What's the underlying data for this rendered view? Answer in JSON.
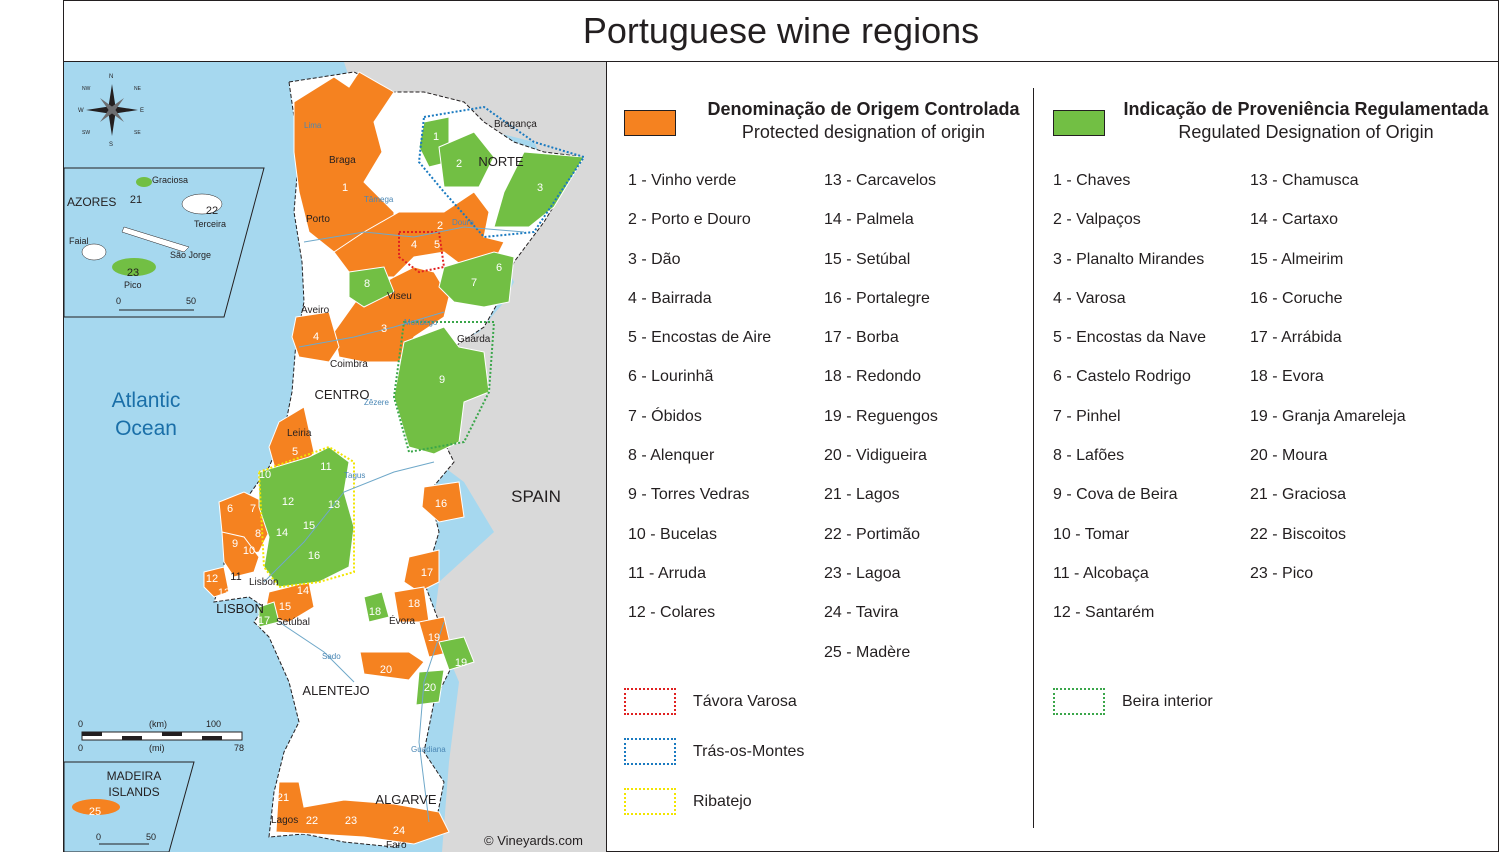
{
  "title": "Portuguese wine regions",
  "colors": {
    "doc": "#f58220",
    "ipr": "#72bf44",
    "sea": "#a6d8ef",
    "spain": "#d9d9d9",
    "tavora": "#e02020",
    "tras": "#1a7ac0",
    "ribatejo": "#f2e500",
    "beira": "#3aa64a"
  },
  "doc_legend": {
    "title": "Denominação de Origem Controlada",
    "subtitle": "Protected designation of origin",
    "items": [
      "1 - Vinho verde",
      "2 - Porto e Douro",
      "3 - Dão",
      "4 - Bairrada",
      "5 - Encostas de Aire",
      "6 - Lourinhã",
      "7 - Óbidos",
      "8 - Alenquer",
      "9 - Torres Vedras",
      "10 - Bucelas",
      "11 - Arruda",
      "12 - Colares",
      "13 - Carcavelos",
      "14 - Palmela",
      "15 - Setúbal",
      "16 - Portalegre",
      "17 - Borba",
      "18 - Redondo",
      "19 - Reguengos",
      "20 - Vidigueira",
      "21 - Lagos",
      "22 - Portimão",
      "23 - Lagoa",
      "24 - Tavira",
      "25 - Madère"
    ]
  },
  "ipr_legend": {
    "title": "Indicação de Proveniência Regulamentada",
    "subtitle": "Regulated Designation of Origin",
    "items": [
      "1 - Chaves",
      "2 - Valpaços",
      "3 - Planalto Mirandes",
      "4 - Varosa",
      "5 - Encostas da Nave",
      "6 - Castelo Rodrigo",
      "7 - Pinhel",
      "8 - Lafões",
      "9 - Cova de Beira",
      "10 - Tomar",
      "11 - Alcobaça",
      "12 - Santarém",
      "13 - Chamusca",
      "14 - Cartaxo",
      "15 - Almeirim",
      "16 - Coruche",
      "17 - Arrábida",
      "18 - Evora",
      "19 -  Granja Amareleja",
      "20 - Moura",
      "21 - Graciosa",
      "22 - Biscoitos",
      "23 - Pico"
    ]
  },
  "boundary_legend": {
    "tavora": "Távora Varosa",
    "tras": "Trás-os-Montes",
    "ribatejo": "Ribatejo",
    "beira": "Beira interior"
  },
  "map": {
    "ocean": [
      "Atlantic",
      "Ocean"
    ],
    "spain": "SPAIN",
    "regions": [
      "NORTE",
      "CENTRO",
      "ALENTEJO",
      "ALGARVE",
      "LISBON"
    ],
    "cities": [
      "Bragança",
      "Braga",
      "Porto",
      "Viseu",
      "Aveiro",
      "Guarda",
      "Coimbra",
      "Leiria",
      "Lisbon",
      "Setúbal",
      "Évora",
      "Lagos",
      "Faro"
    ],
    "rivers": [
      "Lima",
      "Tâmega",
      "Douro",
      "Mondego",
      "Zêzere",
      "Tagus",
      "Sado",
      "Guadiana"
    ],
    "azores": {
      "label": "AZORES",
      "islands": [
        "Graciosa",
        "Terceira",
        "Faial",
        "São Jorge",
        "Pico"
      ],
      "scale": [
        "0",
        "50"
      ]
    },
    "madeira": {
      "label": [
        "MADEIRA",
        "ISLANDS"
      ],
      "scale": [
        "0",
        "50"
      ]
    },
    "scale": {
      "km": [
        "0",
        "(km)",
        "100"
      ],
      "mi": [
        "0",
        "(mi)",
        "78"
      ]
    },
    "compass": [
      "N",
      "E",
      "S",
      "W",
      "NE",
      "NW",
      "SE",
      "SW"
    ],
    "credit": "© Vineyards.com",
    "doc_labels": [
      "1",
      "2",
      "3",
      "4",
      "5",
      "6",
      "7",
      "8",
      "9",
      "10",
      "11",
      "12",
      "13",
      "14",
      "15",
      "16",
      "17",
      "18",
      "19",
      "20",
      "21",
      "22",
      "23",
      "24",
      "25"
    ],
    "ipr_labels": [
      "1",
      "2",
      "3",
      "4",
      "5",
      "6",
      "7",
      "8",
      "9",
      "10",
      "11",
      "12",
      "13",
      "14",
      "15",
      "16",
      "17",
      "18",
      "19",
      "20",
      "21",
      "22",
      "23"
    ]
  }
}
